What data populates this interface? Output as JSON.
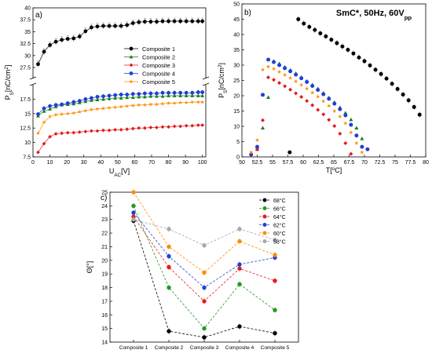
{
  "chart_data": [
    {
      "panel_label": "a)",
      "type": "line",
      "xlabel": "U",
      "xlabel_sub": "AC",
      "xlabel_tail": "[V]",
      "ylabel": "P",
      "ylabel_sub": "S",
      "ylabel_tail": "[nC/cm",
      "ylabel_sup": "2",
      "ylabel_end": "]",
      "xlim": [
        0,
        102
      ],
      "xticks": [
        0,
        10,
        20,
        30,
        40,
        50,
        60,
        70,
        80,
        90,
        100
      ],
      "upper_ylim": [
        25.2,
        40
      ],
      "upper_yticks": [
        27.5,
        30,
        32.5,
        35,
        37.5,
        40
      ],
      "lower_ylim": [
        7.5,
        20
      ],
      "lower_yticks": [
        7.5,
        10,
        12.5,
        15,
        17.5
      ],
      "x": [
        3,
        6.5,
        10,
        13.5,
        17,
        20.5,
        24,
        27.5,
        31,
        34.5,
        38,
        41.5,
        45,
        48.5,
        52,
        55.5,
        59,
        62.5,
        66,
        69.5,
        73,
        76.5,
        80,
        83.5,
        87,
        90.5,
        94,
        97.5,
        100
      ],
      "series": [
        {
          "name": "Composite 1",
          "color": "#000000",
          "marker": "circle",
          "axis": "upper",
          "values": [
            28.2,
            30.8,
            32.2,
            32.9,
            33.3,
            33.5,
            33.6,
            34.0,
            35.1,
            35.9,
            36.1,
            36.2,
            36.2,
            36.2,
            36.2,
            36.4,
            36.8,
            37.0,
            37.1,
            37.1,
            37.1,
            37.2,
            37.2,
            37.2,
            37.2,
            37.2,
            37.2,
            37.2,
            37.2
          ]
        },
        {
          "name": "Composite 2",
          "color": "#1a7a1a",
          "marker": "triangle",
          "axis": "lower",
          "values": [
            14.6,
            15.4,
            15.8,
            16.2,
            16.5,
            16.6,
            16.7,
            16.9,
            17.1,
            17.3,
            17.4,
            17.5,
            17.6,
            17.7,
            17.7,
            17.8,
            17.8,
            17.9,
            17.9,
            18.0,
            18.0,
            18.0,
            18.1,
            18.1,
            18.1,
            18.1,
            18.1,
            18.1,
            18.1
          ]
        },
        {
          "name": "Composite 3",
          "color": "#e31a1c",
          "marker": "diamond",
          "axis": "lower",
          "values": [
            8.3,
            9.8,
            11.0,
            11.5,
            11.6,
            11.7,
            11.7,
            11.8,
            11.9,
            12.0,
            12.0,
            12.1,
            12.1,
            12.2,
            12.2,
            12.3,
            12.4,
            12.5,
            12.5,
            12.6,
            12.6,
            12.7,
            12.7,
            12.8,
            12.8,
            12.9,
            12.9,
            13.0,
            13.0
          ]
        },
        {
          "name": "Composite 4",
          "color": "#1f3fd6",
          "marker": "circle",
          "axis": "lower",
          "values": [
            14.9,
            15.9,
            16.3,
            16.5,
            16.6,
            16.8,
            17.0,
            17.2,
            17.5,
            17.7,
            17.9,
            18.0,
            18.1,
            18.2,
            18.3,
            18.3,
            18.4,
            18.4,
            18.5,
            18.5,
            18.5,
            18.6,
            18.6,
            18.6,
            18.6,
            18.6,
            18.6,
            18.7,
            18.7
          ]
        },
        {
          "name": "Composite 5",
          "color": "#ff8c00",
          "marker": "star",
          "axis": "lower",
          "values": [
            11.6,
            13.5,
            14.5,
            14.8,
            14.9,
            15.0,
            15.1,
            15.3,
            15.5,
            15.7,
            15.8,
            15.9,
            16.0,
            16.1,
            16.2,
            16.3,
            16.4,
            16.5,
            16.5,
            16.6,
            16.6,
            16.7,
            16.8,
            16.8,
            16.9,
            16.9,
            17.0,
            17.0,
            17.0
          ]
        }
      ],
      "legend_position": "right-middle"
    },
    {
      "panel_label": "b)",
      "type": "scatter",
      "title": "SmC*, 50Hz, 60V",
      "title_sub": "pp",
      "xlabel": "T[",
      "xlabel_sup": "o",
      "xlabel_tail": "C]",
      "ylabel": "P",
      "ylabel_sub": "S",
      "ylabel_tail": "[nC/cm",
      "ylabel_sup": "2",
      "ylabel_end": "]",
      "xlim": [
        50,
        80
      ],
      "ylim": [
        0,
        50
      ],
      "xticks": [
        50,
        52.5,
        55,
        57.5,
        60,
        62.5,
        65,
        67.5,
        70,
        72.5,
        75,
        77.5,
        80
      ],
      "yticks": [
        0,
        5,
        10,
        15,
        20,
        25,
        30,
        35,
        40,
        45,
        50
      ],
      "series": [
        {
          "name": "Composite 1",
          "color": "#000000",
          "marker": "circle",
          "x": [
            57.8,
            59.2,
            60.1,
            61.0,
            61.9,
            62.8,
            63.7,
            64.6,
            65.5,
            66.4,
            67.3,
            68.2,
            69.1,
            70.0,
            70.9,
            71.8,
            72.7,
            73.6,
            74.5,
            75.4,
            76.3,
            77.2,
            78.1,
            79.0
          ],
          "y": [
            1.5,
            45.0,
            43.6,
            42.5,
            41.5,
            40.4,
            39.4,
            38.3,
            37.2,
            36.1,
            35.0,
            33.8,
            32.5,
            31.3,
            29.9,
            28.5,
            27.1,
            25.6,
            23.9,
            22.2,
            20.4,
            18.5,
            16.3,
            13.8
          ]
        },
        {
          "name": "Composite 2",
          "color": "#1a7a1a",
          "marker": "triangle",
          "x": [
            52.5,
            53.4,
            54.3,
            55.2,
            56.1,
            57.0,
            57.9,
            58.8,
            59.7,
            60.6,
            61.5,
            62.4,
            63.3,
            64.2,
            65.1,
            66.0,
            66.9,
            67.8,
            68.7,
            69.6
          ],
          "y": [
            2.5,
            9.5,
            19.5,
            31.3,
            30.5,
            29.4,
            28.4,
            27.3,
            26.1,
            24.8,
            23.6,
            22.3,
            20.9,
            19.4,
            17.9,
            16.2,
            14.4,
            12.2,
            9.5,
            6.0
          ]
        },
        {
          "name": "Composite 3",
          "color": "#e31a1c",
          "marker": "diamond",
          "x": [
            51.5,
            52.5,
            53.4,
            54.3,
            55.2,
            56.1,
            57.0,
            57.9,
            58.8,
            59.7,
            60.6,
            61.5,
            62.4,
            63.3,
            64.2,
            65.1,
            66.0,
            66.9,
            67.8
          ],
          "y": [
            0.5,
            2.5,
            12.0,
            26.0,
            25.2,
            24.2,
            23.1,
            22.0,
            20.8,
            19.6,
            18.3,
            16.9,
            15.4,
            13.9,
            12.1,
            10.1,
            7.6,
            4.5,
            1.0
          ]
        },
        {
          "name": "Composite 4",
          "color": "#1f3fd6",
          "marker": "circle",
          "x": [
            51.5,
            52.5,
            53.4,
            54.3,
            55.2,
            56.1,
            57.0,
            57.9,
            58.8,
            59.7,
            60.6,
            61.5,
            62.4,
            63.3,
            64.2,
            65.1,
            66.0,
            66.9,
            67.8,
            68.7,
            69.6,
            70.5
          ],
          "y": [
            0.8,
            3.3,
            20.3,
            31.8,
            31.0,
            30.0,
            29.0,
            28.0,
            26.9,
            25.7,
            24.5,
            23.2,
            21.9,
            20.5,
            19.0,
            17.4,
            15.6,
            13.6,
            10.5,
            7.0,
            3.3,
            2.5
          ]
        },
        {
          "name": "Composite 5",
          "color": "#ff8c00",
          "marker": "star",
          "x": [
            51.5,
            52.5,
            53.4,
            54.3,
            55.2,
            56.1,
            57.0,
            57.9,
            58.8,
            59.7,
            60.6,
            61.5,
            62.4,
            63.3,
            64.2,
            65.1,
            66.0,
            66.9,
            67.8,
            68.7,
            69.6
          ],
          "y": [
            1.5,
            5.5,
            28.5,
            29.5,
            28.8,
            27.8,
            26.8,
            25.8,
            24.7,
            23.5,
            22.3,
            21.0,
            19.7,
            18.2,
            16.7,
            15.0,
            13.2,
            11.0,
            8.0,
            4.5,
            1.5
          ]
        }
      ]
    },
    {
      "panel_label": "c)",
      "type": "line",
      "ylabel": "Θ[°]",
      "ylim": [
        14,
        25
      ],
      "yticks": [
        14,
        15,
        16,
        17,
        18,
        19,
        20,
        21,
        22,
        23,
        24,
        25
      ],
      "categories": [
        "Composite 1",
        "Composite 2",
        "Composite 3",
        "Composite 4",
        "Composite 5"
      ],
      "series": [
        {
          "name": "68°C",
          "color": "#000000",
          "values": [
            22.9,
            14.8,
            14.35,
            15.15,
            14.65
          ]
        },
        {
          "name": "66°C",
          "color": "#1f9a1f",
          "values": [
            24.0,
            18.0,
            15.0,
            18.25,
            16.35
          ]
        },
        {
          "name": "64°C",
          "color": "#e31a1c",
          "values": [
            23.2,
            19.5,
            17.0,
            19.4,
            18.5
          ]
        },
        {
          "name": "62°C",
          "color": "#1f3fd6",
          "values": [
            23.5,
            20.3,
            18.0,
            19.7,
            20.2
          ]
        },
        {
          "name": "60°C",
          "color": "#ff8c00",
          "values": [
            25.0,
            21.0,
            19.1,
            21.4,
            20.4
          ]
        },
        {
          "name": "58°C",
          "color": "#a8a8a8",
          "values": [
            23.0,
            22.3,
            21.1,
            22.3,
            21.5
          ]
        }
      ],
      "legend_position": "top-right"
    }
  ]
}
